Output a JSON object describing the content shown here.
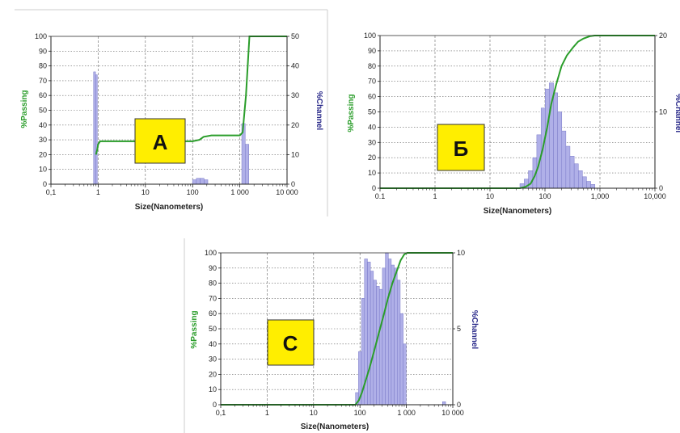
{
  "colors": {
    "cumulative_line": "#2a9d2a",
    "histogram_bar": "#b0b0e8",
    "histogram_edge": "#7a7ac8",
    "badge_fill": "#ffee00",
    "grid": "#666666"
  },
  "chart_data": [
    {
      "panel": "A",
      "type": "bar",
      "badge": "A",
      "xlabel": "Size(Nanometers)",
      "ylabel_left": "%Passing",
      "ylabel_right": "%Channel",
      "x_scale": "log",
      "xlim": [
        0.1,
        10000
      ],
      "x_tick_labels": [
        "0,1",
        "1",
        "10",
        "100",
        "1 000",
        "10 000"
      ],
      "ylim_left": [
        0,
        100
      ],
      "y_ticks_left": [
        "0",
        "10",
        "20",
        "30",
        "40",
        "50",
        "60",
        "70",
        "80",
        "90",
        "100"
      ],
      "ylim_right": [
        0,
        50
      ],
      "y_ticks_right": [
        "0",
        "10",
        "20",
        "30",
        "40",
        "50"
      ],
      "grid": true,
      "bins": [
        {
          "x0": 0.8,
          "x1": 0.88,
          "value": 38
        },
        {
          "x0": 0.88,
          "x1": 0.96,
          "value": 37
        },
        {
          "x0": 100,
          "x1": 120,
          "value": 1.5
        },
        {
          "x0": 120,
          "x1": 145,
          "value": 2.0
        },
        {
          "x0": 145,
          "x1": 175,
          "value": 2.0
        },
        {
          "x0": 175,
          "x1": 210,
          "value": 1.5
        },
        {
          "x0": 1100,
          "x1": 1300,
          "value": 20.5
        },
        {
          "x0": 1300,
          "x1": 1550,
          "value": 13.5
        }
      ],
      "cumulative": {
        "x": [
          0.9,
          0.95,
          1.0,
          1.1,
          10,
          50,
          100,
          140,
          170,
          250,
          500,
          1000,
          1150,
          1350,
          1600,
          10000
        ],
        "y": [
          20,
          23,
          27,
          29,
          29,
          29,
          29,
          30,
          32,
          33,
          33,
          33,
          35,
          60,
          100,
          100
        ]
      }
    },
    {
      "panel": "Б",
      "type": "bar",
      "badge": "Б",
      "xlabel": "Size(Nanometers)",
      "ylabel_left": "%Passing",
      "ylabel_right": "%Channel",
      "x_scale": "log",
      "xlim": [
        0.1,
        10000
      ],
      "x_tick_labels": [
        "0.1",
        "1",
        "10",
        "100",
        "1,000",
        "10,000"
      ],
      "ylim_left": [
        0,
        100
      ],
      "y_ticks_left": [
        "0",
        "10",
        "20",
        "30",
        "40",
        "50",
        "60",
        "70",
        "80",
        "90",
        "100"
      ],
      "ylim_right": [
        0,
        20
      ],
      "y_ticks_right": [
        "0",
        "10",
        "20"
      ],
      "grid": true,
      "bins": [
        {
          "x0": 35,
          "x1": 42,
          "value": 0.6
        },
        {
          "x0": 42,
          "x1": 50,
          "value": 1.2
        },
        {
          "x0": 50,
          "x1": 60,
          "value": 2.3
        },
        {
          "x0": 60,
          "x1": 71,
          "value": 4.0
        },
        {
          "x0": 71,
          "x1": 85,
          "value": 7.0
        },
        {
          "x0": 85,
          "x1": 101,
          "value": 10.5
        },
        {
          "x0": 101,
          "x1": 120,
          "value": 13.0
        },
        {
          "x0": 120,
          "x1": 143,
          "value": 13.8
        },
        {
          "x0": 143,
          "x1": 170,
          "value": 12.5
        },
        {
          "x0": 170,
          "x1": 202,
          "value": 10.0
        },
        {
          "x0": 202,
          "x1": 240,
          "value": 7.5
        },
        {
          "x0": 240,
          "x1": 285,
          "value": 5.5
        },
        {
          "x0": 285,
          "x1": 340,
          "value": 4.2
        },
        {
          "x0": 340,
          "x1": 405,
          "value": 3.2
        },
        {
          "x0": 405,
          "x1": 480,
          "value": 2.3
        },
        {
          "x0": 480,
          "x1": 570,
          "value": 1.5
        },
        {
          "x0": 570,
          "x1": 680,
          "value": 0.9
        },
        {
          "x0": 680,
          "x1": 810,
          "value": 0.5
        }
      ],
      "cumulative": {
        "x": [
          0.1,
          35,
          45,
          55,
          65,
          75,
          90,
          110,
          130,
          160,
          200,
          250,
          320,
          400,
          500,
          650,
          800,
          10000
        ],
        "y": [
          0,
          0,
          1,
          3,
          8,
          14,
          25,
          40,
          55,
          68,
          80,
          87,
          92,
          96,
          98,
          99.5,
          100,
          100
        ]
      }
    },
    {
      "panel": "C",
      "type": "bar",
      "badge": "C",
      "xlabel": "Size(Nanometers)",
      "ylabel_left": "%Passing",
      "ylabel_right": "%Channel",
      "x_scale": "log",
      "xlim": [
        0.1,
        10000
      ],
      "x_tick_labels": [
        "0,1",
        "1",
        "10",
        "100",
        "1 000",
        "10 000"
      ],
      "ylim_left": [
        0,
        100
      ],
      "y_ticks_left": [
        "0",
        "10",
        "20",
        "30",
        "40",
        "50",
        "60",
        "70",
        "80",
        "90",
        "100"
      ],
      "ylim_right": [
        0,
        10
      ],
      "y_ticks_right": [
        "0",
        "5",
        "10"
      ],
      "grid": true,
      "bins": [
        {
          "x0": 80,
          "x1": 93,
          "value": 0.8
        },
        {
          "x0": 93,
          "x1": 108,
          "value": 3.5
        },
        {
          "x0": 108,
          "x1": 125,
          "value": 7.0
        },
        {
          "x0": 125,
          "x1": 145,
          "value": 9.6
        },
        {
          "x0": 145,
          "x1": 168,
          "value": 9.4
        },
        {
          "x0": 168,
          "x1": 195,
          "value": 8.8
        },
        {
          "x0": 195,
          "x1": 226,
          "value": 8.2
        },
        {
          "x0": 226,
          "x1": 262,
          "value": 7.8
        },
        {
          "x0": 262,
          "x1": 304,
          "value": 7.6
        },
        {
          "x0": 304,
          "x1": 352,
          "value": 9.0
        },
        {
          "x0": 352,
          "x1": 408,
          "value": 10.0
        },
        {
          "x0": 408,
          "x1": 473,
          "value": 9.6
        },
        {
          "x0": 473,
          "x1": 548,
          "value": 9.2
        },
        {
          "x0": 548,
          "x1": 635,
          "value": 9.0
        },
        {
          "x0": 635,
          "x1": 736,
          "value": 8.2
        },
        {
          "x0": 736,
          "x1": 853,
          "value": 6.0
        },
        {
          "x0": 853,
          "x1": 990,
          "value": 4.0
        },
        {
          "x0": 6000,
          "x1": 7000,
          "value": 0.2
        }
      ],
      "cumulative": {
        "x": [
          0.1,
          80,
          95,
          110,
          130,
          160,
          200,
          260,
          330,
          400,
          500,
          620,
          750,
          900,
          1050,
          10000
        ],
        "y": [
          0,
          0,
          3,
          8,
          15,
          24,
          35,
          48,
          60,
          70,
          80,
          88,
          95,
          99,
          100,
          100
        ]
      }
    }
  ]
}
